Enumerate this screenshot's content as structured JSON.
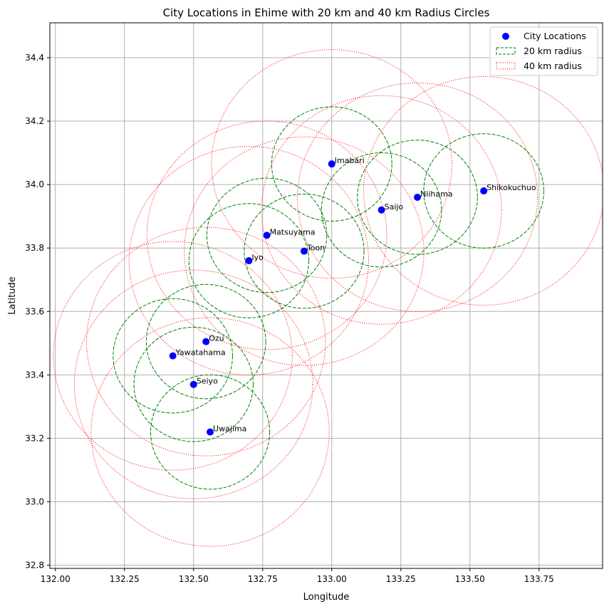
{
  "chart_data": {
    "type": "scatter",
    "title": "City Locations in Ehime with 20 km and 40 km Radius Circles",
    "xlabel": "Longitude",
    "ylabel": "Latitude",
    "xlim": [
      131.98,
      133.98
    ],
    "ylim": [
      32.79,
      34.51
    ],
    "xticks": [
      "132.00",
      "132.25",
      "132.50",
      "132.75",
      "133.00",
      "133.25",
      "133.50",
      "133.75"
    ],
    "yticks": [
      "32.8",
      "33.0",
      "33.2",
      "33.4",
      "33.6",
      "33.8",
      "34.0",
      "34.2",
      "34.4"
    ],
    "grid": true,
    "legend_position": "top-right",
    "series": [
      {
        "name": "City Locations",
        "kind": "points",
        "color": "#0000ff"
      },
      {
        "name": "20 km radius",
        "kind": "circle",
        "radius_km": 20,
        "color": "#008000",
        "linestyle": "dashed"
      },
      {
        "name": "40 km radius",
        "kind": "circle",
        "radius_km": 40,
        "color": "#ff0000",
        "linestyle": "dotted"
      }
    ],
    "points": [
      {
        "label": "Imabari",
        "x": 133.0,
        "y": 34.065
      },
      {
        "label": "Niihama",
        "x": 133.31,
        "y": 33.96
      },
      {
        "label": "Saijo",
        "x": 133.18,
        "y": 33.92
      },
      {
        "label": "Shikokuchuo",
        "x": 133.55,
        "y": 33.98
      },
      {
        "label": "Matsuyama",
        "x": 132.765,
        "y": 33.84
      },
      {
        "label": "Toon",
        "x": 132.9,
        "y": 33.79
      },
      {
        "label": "Iyo",
        "x": 132.7,
        "y": 33.76
      },
      {
        "label": "Ozu",
        "x": 132.545,
        "y": 33.505
      },
      {
        "label": "Yawatahama",
        "x": 132.425,
        "y": 33.46
      },
      {
        "label": "Seiyo",
        "x": 132.5,
        "y": 33.37
      },
      {
        "label": "Uwajima",
        "x": 132.56,
        "y": 33.22
      }
    ]
  }
}
